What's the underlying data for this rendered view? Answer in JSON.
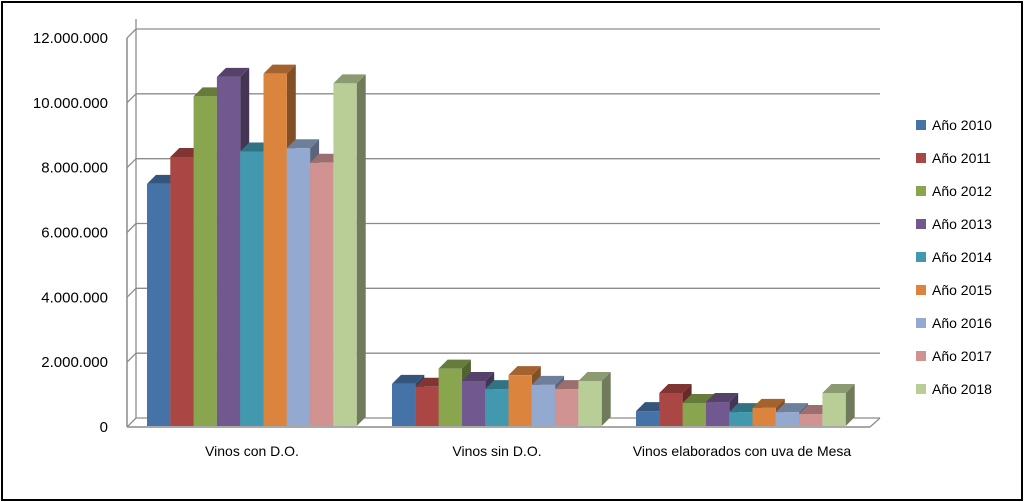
{
  "chart_data": {
    "type": "bar",
    "subtype": "3d-clustered-column",
    "title": "",
    "xlabel": "",
    "ylabel": "",
    "ylim": [
      0,
      12000000
    ],
    "yticks": [
      "0",
      "2.000.000",
      "4.000.000",
      "6.000.000",
      "8.000.000",
      "10.000.000",
      "12.000.000"
    ],
    "ytick_values": [
      0,
      2000000,
      4000000,
      6000000,
      8000000,
      10000000,
      12000000
    ],
    "grid": true,
    "legend_position": "right",
    "categories": [
      "Vinos con D.O.",
      "Vinos sin D.O.",
      "Vinos elaborados con uva de Mesa"
    ],
    "series": [
      {
        "name": "Año 2010",
        "color": "#4572a7",
        "values": [
          7500000,
          1330000,
          490000
        ]
      },
      {
        "name": "Año 2011",
        "color": "#aa4643",
        "values": [
          8330000,
          1240000,
          1050000
        ]
      },
      {
        "name": "Año 2012",
        "color": "#89a54e",
        "values": [
          10200000,
          1800000,
          740000
        ]
      },
      {
        "name": "Año 2013",
        "color": "#71588f",
        "values": [
          10800000,
          1420000,
          770000
        ]
      },
      {
        "name": "Año 2014",
        "color": "#4198af",
        "values": [
          8500000,
          1170000,
          460000
        ]
      },
      {
        "name": "Año 2015",
        "color": "#db843d",
        "values": [
          10900000,
          1600000,
          590000
        ]
      },
      {
        "name": "Año 2016",
        "color": "#93a9cf",
        "values": [
          8600000,
          1300000,
          460000
        ]
      },
      {
        "name": "Año 2017",
        "color": "#d19392",
        "values": [
          8150000,
          1170000,
          400000
        ]
      },
      {
        "name": "Año 2018",
        "color": "#b9cd96",
        "values": [
          10600000,
          1420000,
          1050000
        ]
      }
    ]
  }
}
